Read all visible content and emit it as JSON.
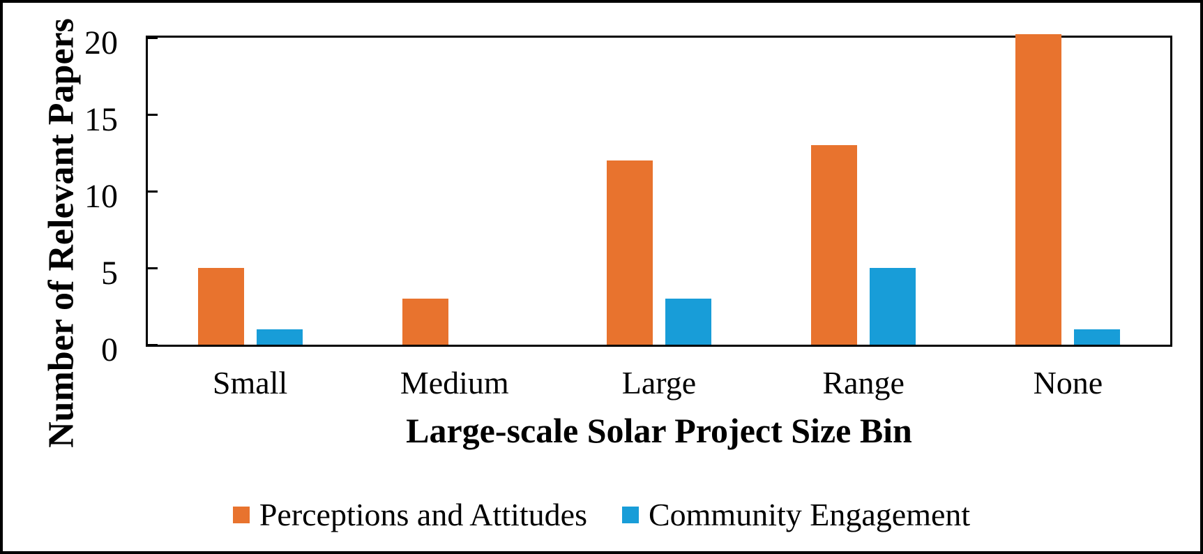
{
  "figure": {
    "y_axis_title": "Number of Relevant Papers",
    "x_axis_title": "Large-scale Solar Project Size Bin"
  },
  "legend": {
    "items": [
      {
        "label": "Perceptions and Attitudes",
        "color": "#E8732E"
      },
      {
        "label": "Community Engagement",
        "color": "#189DD8"
      }
    ]
  },
  "chart_data": {
    "type": "bar",
    "title": "",
    "categories": [
      "Small",
      "Medium",
      "Large",
      "Range",
      "None"
    ],
    "series": [
      {
        "name": "Perceptions and Attitudes",
        "color": "#E8732E",
        "values": [
          5,
          3,
          12,
          13,
          20
        ]
      },
      {
        "name": "Community Engagement",
        "color": "#189DD8",
        "values": [
          1,
          0,
          3,
          5,
          1
        ]
      }
    ],
    "xlabel": "Large-scale Solar Project Size Bin",
    "ylabel": "Number of Relevant Papers",
    "ylim": [
      0,
      20
    ],
    "yticks": [
      0,
      5,
      10,
      15,
      20
    ],
    "grid": false,
    "frame": true,
    "tick_direction": "in",
    "legend_position": "bottom",
    "axis_color": "#000000",
    "background_color": "#FFFFFF"
  }
}
